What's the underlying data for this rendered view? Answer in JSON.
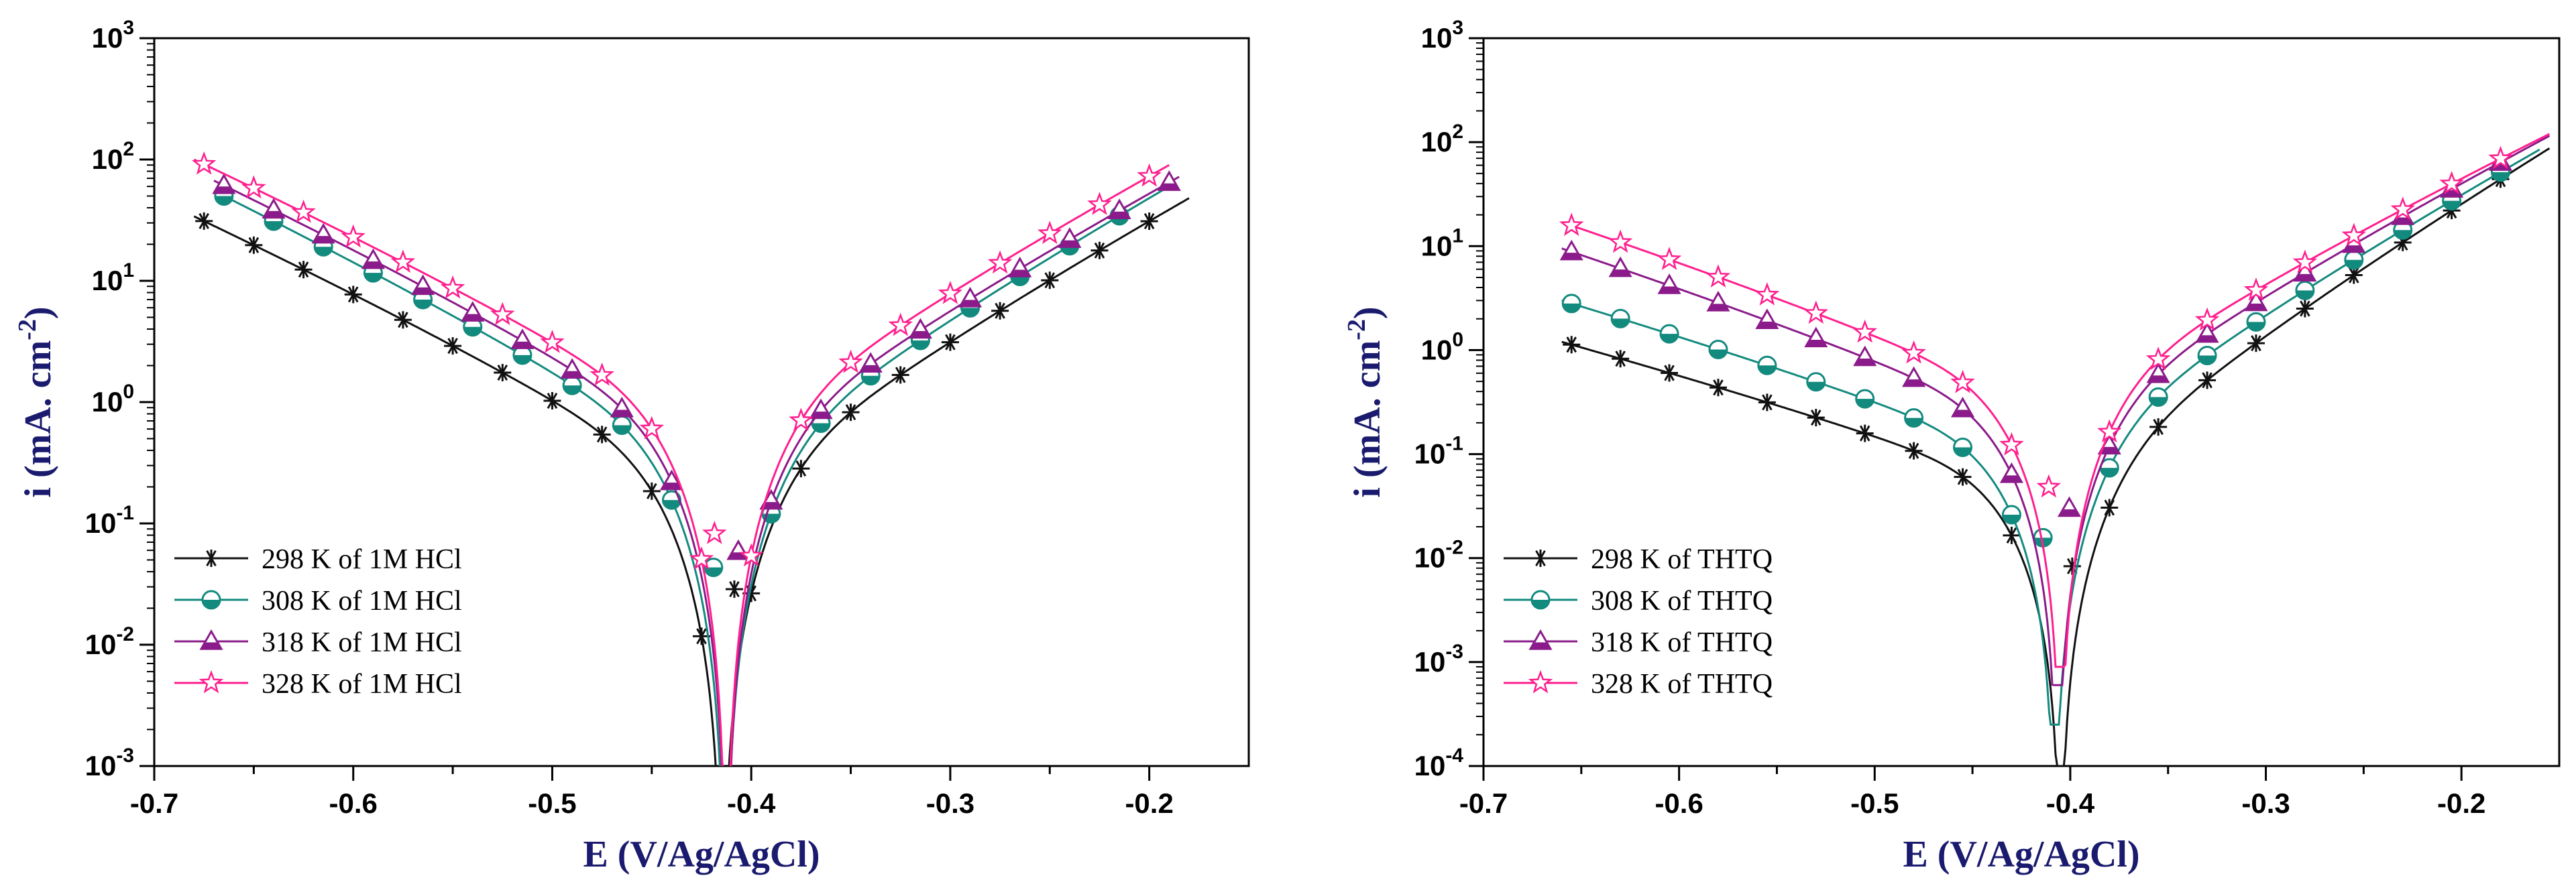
{
  "figure": {
    "colors": {
      "s298": "#111111",
      "s308": "#138a7e",
      "s318": "#8b1a8a",
      "s328": "#ff1f8e",
      "axis": "#000000",
      "title": "#1a1a6e"
    }
  },
  "chart_data": [
    {
      "type": "line",
      "title": "",
      "xlabel": "E (V/Ag/AgCl)",
      "ylabel": "i (mA. cm",
      "ylabel_sup": "-2",
      "ylabel_close": ")",
      "yscale": "log",
      "xlim": [
        -0.7,
        -0.15
      ],
      "ylim": [
        0.001,
        1000
      ],
      "xticks": [
        -0.7,
        -0.6,
        -0.5,
        -0.4,
        -0.3,
        -0.2
      ],
      "xtick_labels": [
        "-0.7",
        "-0.6",
        "-0.5",
        "-0.4",
        "-0.3",
        "-0.2"
      ],
      "yticks": [
        {
          "base": "10",
          "exp": "-3"
        },
        {
          "base": "10",
          "exp": "-2"
        },
        {
          "base": "10",
          "exp": "-1"
        },
        {
          "base": "10",
          "exp": "0"
        },
        {
          "base": "10",
          "exp": "1"
        },
        {
          "base": "10",
          "exp": "2"
        },
        {
          "base": "10",
          "exp": "3"
        }
      ],
      "legend_position": "bottom-left",
      "series": [
        {
          "name": "298 K of 1M HCl",
          "marker": "asterisk",
          "color_key": "s298",
          "ecorr": -0.4145,
          "imin": 0.0003,
          "icorr": 0.12,
          "anodic": {
            "E": -0.18,
            "i": 48
          },
          "cathodic": {
            "E": -0.68,
            "i": 34
          },
          "x_start": -0.68,
          "x_end": -0.18,
          "marker_step": 0.025
        },
        {
          "name": "308 K of 1M HCl",
          "marker": "half-circle",
          "color_key": "s308",
          "ecorr": -0.413,
          "imin": 0.0005,
          "icorr": 0.18,
          "anodic": {
            "E": -0.19,
            "i": 60
          },
          "cathodic": {
            "E": -0.67,
            "i": 55
          },
          "x_start": -0.67,
          "x_end": -0.19,
          "marker_step": 0.025
        },
        {
          "name": "318 K of 1M HCl",
          "marker": "triangle",
          "color_key": "s318",
          "ecorr": -0.4125,
          "imin": 0.0007,
          "icorr": 0.25,
          "anodic": {
            "E": -0.185,
            "i": 72
          },
          "cathodic": {
            "E": -0.67,
            "i": 67
          },
          "x_start": -0.67,
          "x_end": -0.185,
          "marker_step": 0.025
        },
        {
          "name": "328 K of 1M HCl",
          "marker": "star",
          "color_key": "s328",
          "ecorr": -0.4125,
          "imin": 0.0009,
          "icorr": 0.35,
          "anodic": {
            "E": -0.19,
            "i": 90
          },
          "cathodic": {
            "E": -0.68,
            "i": 100
          },
          "x_start": -0.68,
          "x_end": -0.19,
          "marker_step": 0.025
        }
      ]
    },
    {
      "type": "line",
      "title": "",
      "xlabel": "E (V/Ag/AgCl)",
      "ylabel": "i (mA. cm",
      "ylabel_sup": "-2",
      "ylabel_close": ")",
      "yscale": "log",
      "xlim": [
        -0.7,
        -0.15
      ],
      "ylim": [
        0.0001,
        1000
      ],
      "xticks": [
        -0.7,
        -0.6,
        -0.5,
        -0.4,
        -0.3,
        -0.2
      ],
      "xtick_labels": [
        "-0.7",
        "-0.6",
        "-0.5",
        "-0.4",
        "-0.3",
        "-0.2"
      ],
      "yticks": [
        {
          "base": "10",
          "exp": "-4"
        },
        {
          "base": "10",
          "exp": "-3"
        },
        {
          "base": "10",
          "exp": "-2"
        },
        {
          "base": "10",
          "exp": "-1"
        },
        {
          "base": "10",
          "exp": "0"
        },
        {
          "base": "10",
          "exp": "1"
        },
        {
          "base": "10",
          "exp": "2"
        },
        {
          "base": "10",
          "exp": "3"
        }
      ],
      "ytick_labels_plain": [
        "10.0",
        "1.0",
        "0.1"
      ],
      "legend_position": "bottom-left",
      "series": [
        {
          "name": "298 K of THTQ",
          "marker": "asterisk",
          "color_key": "s298",
          "ecorr": -0.405,
          "imin": 0.0001,
          "icorr": 0.03,
          "anodic": {
            "E": -0.15,
            "i": 100
          },
          "cathodic": {
            "E": -0.66,
            "i": 1.2
          },
          "x_start": -0.66,
          "x_end": -0.155,
          "marker_step": 0.025
        },
        {
          "name": "308 K of THTQ",
          "marker": "half-circle",
          "color_key": "s308",
          "ecorr": -0.408,
          "imin": 0.00025,
          "icorr": 0.06,
          "anodic": {
            "E": -0.16,
            "i": 85
          },
          "cathodic": {
            "E": -0.66,
            "i": 3.0
          },
          "x_start": -0.66,
          "x_end": -0.16,
          "marker_step": 0.025
        },
        {
          "name": "318 K of THTQ",
          "marker": "triangle",
          "color_key": "s318",
          "ecorr": -0.4065,
          "imin": 0.0006,
          "icorr": 0.12,
          "anodic": {
            "E": -0.155,
            "i": 115
          },
          "cathodic": {
            "E": -0.66,
            "i": 9.5
          },
          "x_start": -0.66,
          "x_end": -0.155,
          "marker_step": 0.025
        },
        {
          "name": "328 K of THTQ",
          "marker": "star",
          "color_key": "s328",
          "ecorr": -0.405,
          "imin": 0.0009,
          "icorr": 0.2,
          "anodic": {
            "E": -0.155,
            "i": 120
          },
          "cathodic": {
            "E": -0.66,
            "i": 17
          },
          "x_start": -0.66,
          "x_end": -0.155,
          "marker_step": 0.025
        }
      ]
    }
  ]
}
